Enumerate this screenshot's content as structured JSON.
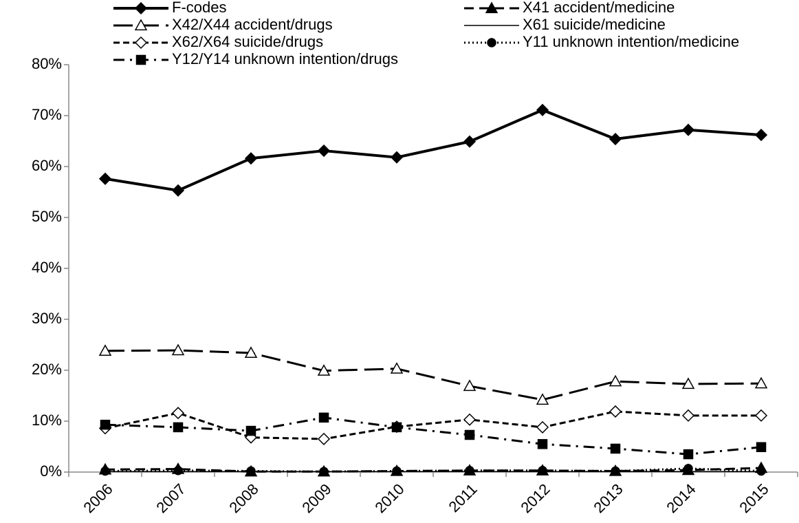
{
  "chart_data": {
    "type": "line",
    "categories": [
      "2006",
      "2007",
      "2008",
      "2009",
      "2010",
      "2011",
      "2012",
      "2013",
      "2014",
      "2015"
    ],
    "series": [
      {
        "name": "F-codes",
        "color": "#000000",
        "marker": "diamond-filled",
        "dash": "solid-thick",
        "values": [
          57.6,
          55.3,
          61.6,
          63.1,
          61.8,
          64.9,
          71.1,
          65.4,
          67.2,
          66.2
        ]
      },
      {
        "name": "X41 accident/medicine",
        "color": "#000000",
        "marker": "triangle-filled",
        "dash": "dash",
        "values": [
          0.5,
          0.6,
          0.1,
          0.1,
          0.2,
          0.3,
          0.3,
          0.2,
          0.4,
          0.8
        ]
      },
      {
        "name": "X42/X44 accident/drugs",
        "color": "#000000",
        "marker": "triangle-open",
        "dash": "long-dash",
        "values": [
          23.8,
          23.9,
          23.4,
          19.9,
          20.3,
          16.9,
          14.2,
          17.8,
          17.3,
          17.4
        ]
      },
      {
        "name": "X61 suicide/medicine",
        "color": "#000000",
        "marker": "none",
        "dash": "solid-thin",
        "values": [
          0.1,
          0.1,
          0.1,
          0.1,
          0.1,
          0.1,
          0.1,
          0.1,
          0.1,
          0.1
        ]
      },
      {
        "name": "X62/X64 suicide/drugs",
        "color": "#000000",
        "marker": "diamond-open",
        "dash": "short-dash",
        "values": [
          8.6,
          11.6,
          6.8,
          6.5,
          8.9,
          10.3,
          8.8,
          11.9,
          11.1,
          11.1
        ]
      },
      {
        "name": "Y11 unknown intention/medicine",
        "color": "#000000",
        "marker": "circle-filled",
        "dash": "dot",
        "values": [
          0.2,
          0.3,
          0.2,
          0.1,
          0.2,
          0.3,
          0.3,
          0.2,
          0.7,
          0.2
        ]
      },
      {
        "name": "Y12/Y14 unknown intention/drugs",
        "color": "#000000",
        "marker": "square-filled",
        "dash": "dash-dot",
        "values": [
          9.3,
          8.8,
          8.1,
          10.7,
          8.8,
          7.3,
          5.5,
          4.6,
          3.5,
          4.9
        ]
      }
    ],
    "ylim": [
      0,
      80
    ],
    "yticks": [
      {
        "value": 0,
        "label": "0%"
      },
      {
        "value": 10,
        "label": "10%"
      },
      {
        "value": 20,
        "label": "20%"
      },
      {
        "value": 30,
        "label": "30%"
      },
      {
        "value": 40,
        "label": "40%"
      },
      {
        "value": 50,
        "label": "50%"
      },
      {
        "value": 60,
        "label": "60%"
      },
      {
        "value": 70,
        "label": "70%"
      },
      {
        "value": 80,
        "label": "80%"
      }
    ],
    "grid": false,
    "legend": "top"
  }
}
